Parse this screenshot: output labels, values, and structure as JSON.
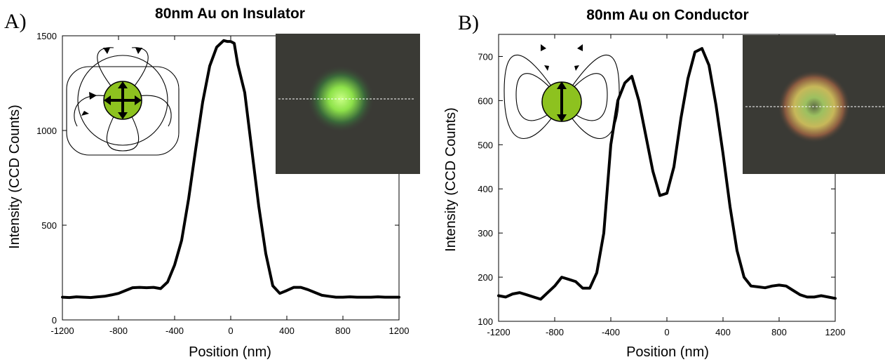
{
  "chart_data": [
    {
      "type": "line",
      "panel_label": "A)",
      "title": "80nm Au on Insulator",
      "xlabel": "Position (nm)",
      "ylabel": "Intensity (CCD Counts)",
      "xlim": [
        -1200,
        1200
      ],
      "ylim": [
        0,
        1500
      ],
      "xticks": [
        -1200,
        -800,
        -400,
        0,
        400,
        800,
        1200
      ],
      "yticks": [
        0,
        500,
        1000,
        1500
      ],
      "grid": false,
      "line_color": "#000000",
      "inset_image": "green spot, dashed cross-section line",
      "inset_diagram": "green particle with four-way arrows and field lines",
      "series": [
        {
          "x": [
            -1200,
            -1150,
            -1100,
            -1050,
            -1000,
            -950,
            -900,
            -850,
            -800,
            -750,
            -700,
            -650,
            -600,
            -550,
            -500,
            -450,
            -400,
            -350,
            -300,
            -250,
            -200,
            -150,
            -100,
            -50,
            -25,
            0,
            25,
            50,
            100,
            150,
            200,
            250,
            300,
            350,
            400,
            450,
            500,
            550,
            600,
            650,
            700,
            750,
            800,
            850,
            900,
            950,
            1000,
            1050,
            1100,
            1150,
            1200
          ],
          "y": [
            120,
            118,
            122,
            120,
            118,
            122,
            125,
            132,
            140,
            155,
            170,
            172,
            170,
            172,
            165,
            200,
            290,
            420,
            640,
            900,
            1150,
            1340,
            1440,
            1475,
            1470,
            1470,
            1460,
            1350,
            1200,
            900,
            600,
            350,
            180,
            140,
            155,
            172,
            172,
            160,
            145,
            130,
            125,
            120,
            120,
            122,
            120,
            120,
            120,
            122,
            120,
            120,
            120
          ]
        }
      ]
    },
    {
      "type": "line",
      "panel_label": "B)",
      "title": "80nm Au on Conductor",
      "xlabel": "Position (nm)",
      "ylabel": "Intensity (CCD Counts)",
      "xlim": [
        -1200,
        1200
      ],
      "ylim": [
        100,
        750
      ],
      "xticks": [
        -1200,
        -800,
        -400,
        0,
        400,
        800,
        1200
      ],
      "yticks": [
        100,
        200,
        300,
        400,
        500,
        600,
        700
      ],
      "grid": false,
      "line_color": "#000000",
      "inset_image": "ring-shaped spot, dashed cross-section line",
      "inset_diagram": "green particle with vertical arrow and field lines",
      "series": [
        {
          "x": [
            -1200,
            -1150,
            -1100,
            -1050,
            -1000,
            -950,
            -900,
            -850,
            -800,
            -750,
            -700,
            -650,
            -600,
            -550,
            -500,
            -450,
            -400,
            -350,
            -300,
            -250,
            -200,
            -150,
            -100,
            -50,
            0,
            50,
            100,
            150,
            200,
            250,
            300,
            350,
            400,
            450,
            500,
            550,
            600,
            650,
            700,
            750,
            800,
            850,
            900,
            950,
            1000,
            1050,
            1100,
            1150,
            1200
          ],
          "y": [
            158,
            155,
            162,
            165,
            160,
            155,
            150,
            165,
            180,
            200,
            195,
            190,
            175,
            175,
            210,
            300,
            500,
            600,
            640,
            655,
            600,
            520,
            440,
            385,
            390,
            450,
            560,
            650,
            710,
            718,
            680,
            590,
            480,
            360,
            260,
            200,
            180,
            178,
            176,
            180,
            182,
            180,
            170,
            160,
            155,
            155,
            158,
            155,
            152
          ]
        }
      ]
    }
  ]
}
